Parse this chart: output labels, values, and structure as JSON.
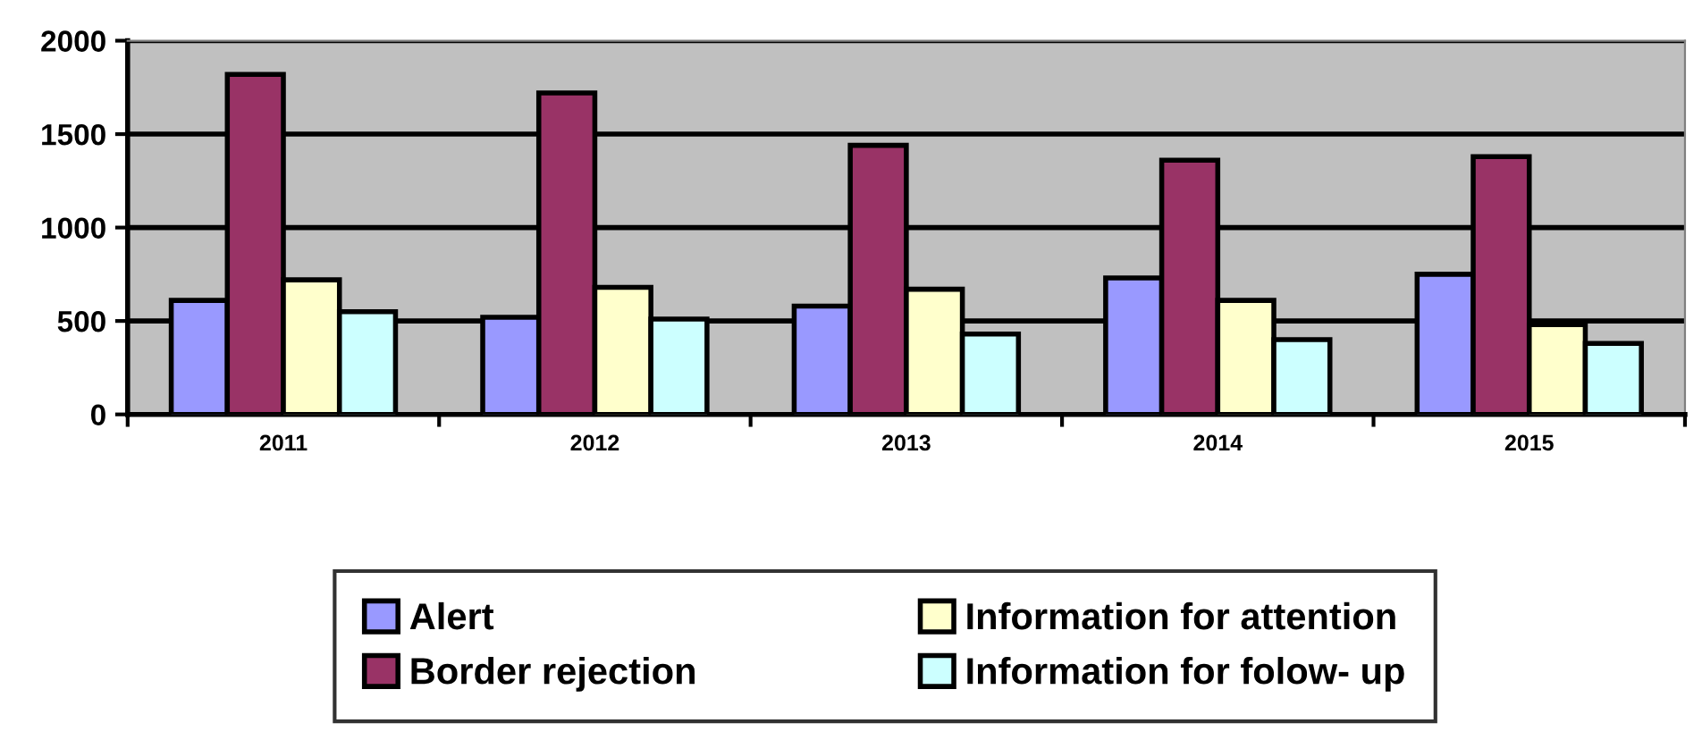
{
  "chart_data": {
    "type": "bar",
    "categories": [
      "2011",
      "2012",
      "2013",
      "2014",
      "2015"
    ],
    "series": [
      {
        "name": "Alert",
        "color": "#9999ff",
        "values": [
          610,
          520,
          580,
          730,
          750
        ]
      },
      {
        "name": "Border rejection",
        "color": "#993366",
        "values": [
          1820,
          1720,
          1440,
          1360,
          1380
        ]
      },
      {
        "name": "Information for attention",
        "color": "#ffffcc",
        "values": [
          720,
          680,
          670,
          610,
          480
        ]
      },
      {
        "name": "Information for folow- up",
        "color": "#ccffff",
        "values": [
          550,
          510,
          430,
          400,
          380
        ]
      }
    ],
    "ylim": [
      0,
      2000
    ],
    "yticks": [
      0,
      500,
      1000,
      1500,
      2000
    ],
    "grid": "y",
    "legend": "bottom"
  }
}
